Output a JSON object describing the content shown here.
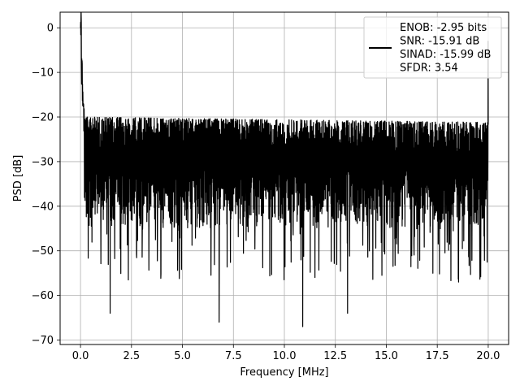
{
  "chart_data": {
    "type": "line",
    "title": "",
    "xlabel": "Frequency [MHz]",
    "ylabel": "PSD [dB]",
    "xlim": [
      -1.0,
      21.0
    ],
    "ylim": [
      -71,
      3.5
    ],
    "xticks": [
      0.0,
      2.5,
      5.0,
      7.5,
      10.0,
      12.5,
      15.0,
      17.5,
      20.0
    ],
    "xtick_labels": [
      "0.0",
      "2.5",
      "5.0",
      "7.5",
      "10.0",
      "12.5",
      "15.0",
      "17.5",
      "20.0"
    ],
    "yticks": [
      0,
      -10,
      -20,
      -30,
      -40,
      -50,
      -60,
      -70
    ],
    "ytick_labels": [
      "0",
      "−10",
      "−20",
      "−30",
      "−40",
      "−50",
      "−60",
      "−70"
    ],
    "grid": true,
    "legend_position": "upper right",
    "series": [
      {
        "name": "ENOB: -2.95 bits\nSNR: -15.91 dB\nSINAD: -15.99 dB\nSFDR: 3.54",
        "color": "#000000",
        "x_range": [
          0.0,
          20.0
        ],
        "peak_value_at_dc": 0,
        "dc_decay_values": [
          0,
          -10,
          -15,
          -20
        ],
        "noise_floor_upper_envelope": -20,
        "noise_floor_mean": -30,
        "noise_floor_lower_envelope": -45,
        "tone_at_end": {
          "x": 20.0,
          "y": -3
        },
        "notable_minima": [
          {
            "x": 1.45,
            "y": -64
          },
          {
            "x": 6.8,
            "y": -66
          },
          {
            "x": 10.9,
            "y": -67
          },
          {
            "x": 13.1,
            "y": -64
          }
        ]
      }
    ]
  },
  "legend": {
    "lines": [
      "ENOB: -2.95 bits",
      "SNR: -15.91 dB",
      "SINAD: -15.99 dB",
      "SFDR: 3.54"
    ]
  }
}
